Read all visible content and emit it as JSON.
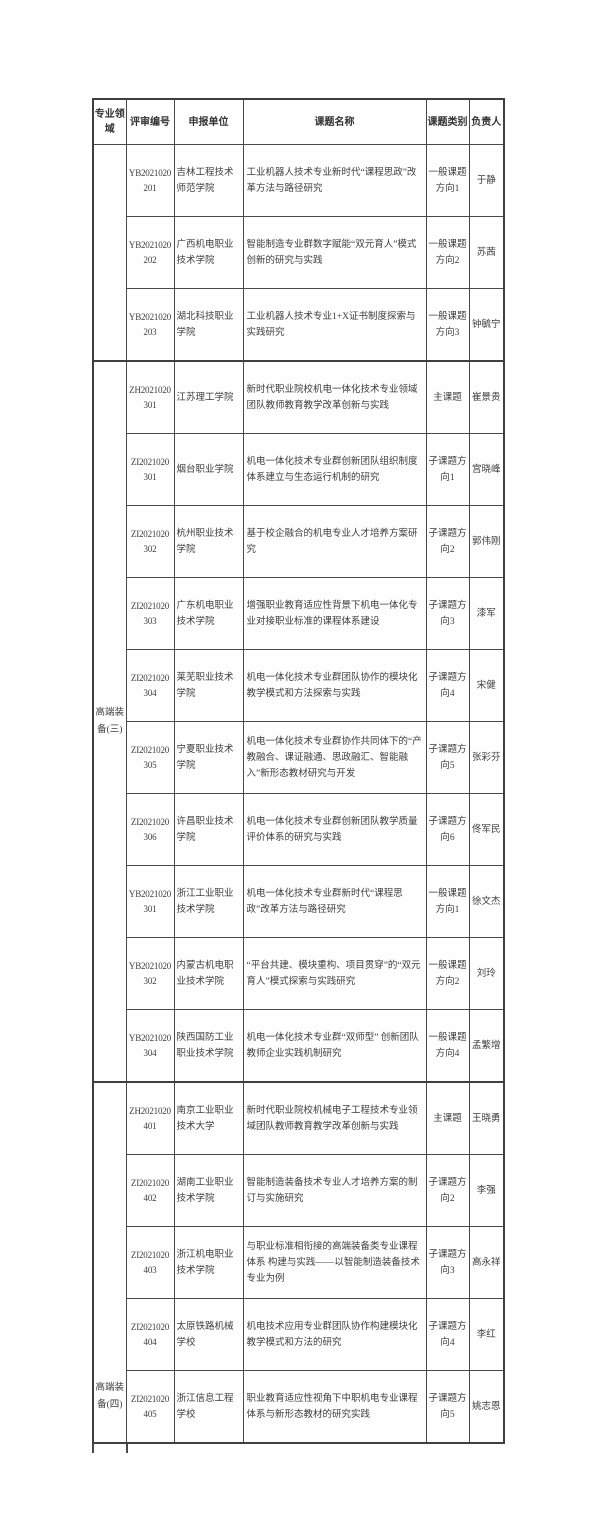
{
  "colors": {
    "border": "#494949",
    "border_heavy": "#3f3f3f",
    "text": "#3d3d3d",
    "background": "#ffffff"
  },
  "table": {
    "headers": [
      "专业领域",
      "评审编号",
      "申报单位",
      "课题名称",
      "课题类别",
      "负责人"
    ],
    "groups": [
      {
        "label": "",
        "rows": [
          {
            "code": "YB2021020201",
            "unit": "吉林工程技术师范学院",
            "title": "工业机器人技术专业新时代“课程思政”改革方法与路径研究",
            "category": "一般课题方向1",
            "leader": "于静"
          },
          {
            "code": "YB2021020202",
            "unit": "广西机电职业技术学院",
            "title": "智能制造专业群数字赋能“双元育人”模式创新的研究与实践",
            "category": "一般课题方向2",
            "leader": "苏茜"
          },
          {
            "code": "YB2021020203",
            "unit": "湖北科技职业学院",
            "title": "工业机器人技术专业1+X证书制度探索与实践研究",
            "category": "一般课题方向3",
            "leader": "钟毓宁"
          }
        ]
      },
      {
        "label": "高端装备(三)",
        "rows": [
          {
            "code": "ZH2021020301",
            "unit": "江苏理工学院",
            "title": "新时代职业院校机电一体化技术专业领域团队教师教育教学改革创新与实践",
            "category": "主课题",
            "leader": "崔景贵"
          },
          {
            "code": "ZI2021020301",
            "unit": "烟台职业学院",
            "title": "机电一体化技术专业群创新团队组织制度体系建立与生态运行机制的研究",
            "category": "子课题方向1",
            "leader": "宫晓峰"
          },
          {
            "code": "ZI2021020302",
            "unit": "杭州职业技术学院",
            "title": "基于校企融合的机电专业人才培养方案研究",
            "category": "子课题方向2",
            "leader": "郭伟刚"
          },
          {
            "code": "ZI2021020303",
            "unit": "广东机电职业技术学院",
            "title": "增强职业教育适应性背景下机电一体化专业对接职业标准的课程体系建设",
            "category": "子课题方向3",
            "leader": "漆军"
          },
          {
            "code": "ZI2021020304",
            "unit": "莱芜职业技术学院",
            "title": "机电一体化技术专业群团队协作的模块化教学模式和方法探索与实践",
            "category": "子课题方向4",
            "leader": "宋健"
          },
          {
            "code": "ZI2021020305",
            "unit": "宁夏职业技术学院",
            "title": "机电一体化技术专业群协作共同体下的“产教融合、课证融通、思政融汇、智能融入”新形态教材研究与开发",
            "category": "子课题方向5",
            "leader": "张彩芬"
          },
          {
            "code": "ZI2021020306",
            "unit": "许昌职业技术学院",
            "title": "机电一体化技术专业群创新团队教学质量评价体系的研究与实践",
            "category": "子课题方向6",
            "leader": "佟军民"
          },
          {
            "code": "YB2021020301",
            "unit": "浙江工业职业技术学院",
            "title": "机电一体化技术专业群新时代“课程思政”改革方法与路径研究",
            "category": "一般课题方向1",
            "leader": "徐文杰"
          },
          {
            "code": "YB2021020302",
            "unit": "内蒙古机电职业技术学院",
            "title": "“平台共建、模块重构、项目贯穿”的“双元育人”模式探索与实践研究",
            "category": "一般课题方向2",
            "leader": "刘玲"
          },
          {
            "code": "YB2021020304",
            "unit": "陕西国防工业职业技术学院",
            "title": "机电一体化技术专业群“双师型” 创新团队教师企业实践机制研究",
            "category": "一般课题方向4",
            "leader": "孟繁增"
          }
        ]
      },
      {
        "label": "高端装备(四)",
        "rows": [
          {
            "code": "ZH2021020401",
            "unit": "南京工业职业技术大学",
            "title": "新时代职业院校机械电子工程技术专业领域团队教师教育教学改革创新与实践",
            "category": "主课题",
            "leader": "王晓勇"
          },
          {
            "code": "ZI2021020402",
            "unit": "湖南工业职业技术学院",
            "title": "智能制造装备技术专业人才培养方案的制订与实施研究",
            "category": "子课题方向2",
            "leader": "李强"
          },
          {
            "code": "ZI2021020403",
            "unit": "浙江机电职业技术学院",
            "title": "与职业标准相衔接的高端装备类专业课程体系 构建与实践——以智能制造装备技术专业为例",
            "category": "子课题方向3",
            "leader": "高永祥"
          },
          {
            "code": "ZI2021020404",
            "unit": "太原铁路机械学校",
            "title": "机电技术应用专业群团队协作构建模块化教学模式和方法的研究",
            "category": "子课题方向4",
            "leader": "李红"
          },
          {
            "code": "ZI2021020405",
            "unit": "浙江信息工程学校",
            "title": "职业教育适应性视角下中职机电专业课程体系与新形态教材的研究实践",
            "category": "子课题方向5",
            "leader": "姚志恩"
          }
        ]
      }
    ]
  }
}
